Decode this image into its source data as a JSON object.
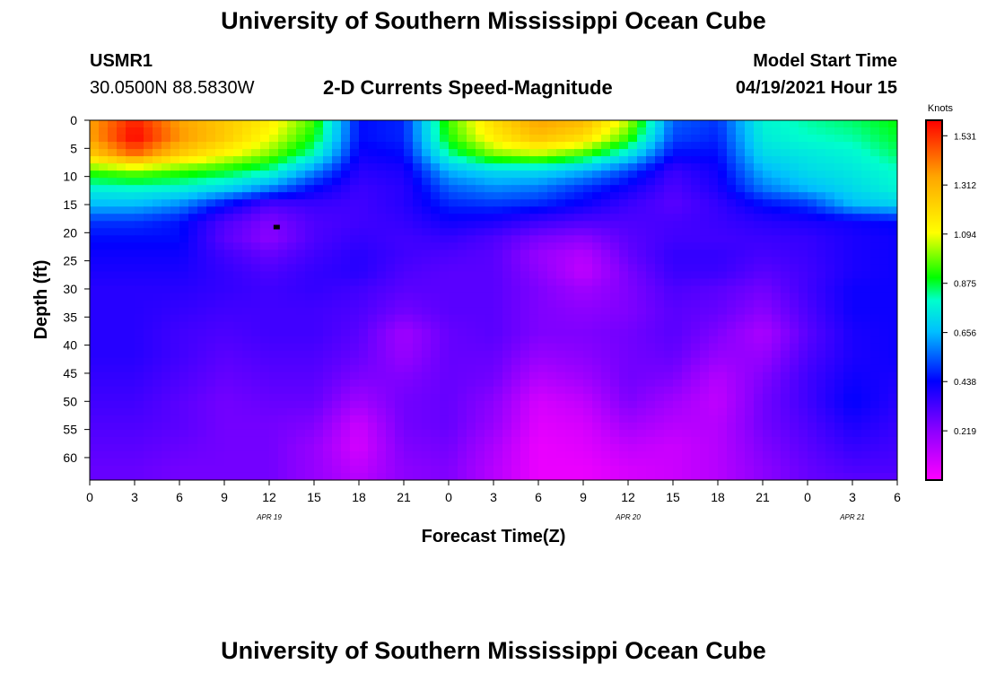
{
  "header": {
    "title": "University of Southern Mississippi Ocean Cube",
    "station_id": "USMR1",
    "station_coords": "30.0500N  88.5830W",
    "subtitle": "2-D Currents Speed-Magnitude",
    "model_start_label": "Model Start Time",
    "model_start_value": "04/19/2021 Hour 15"
  },
  "footer": {
    "title": "University of Southern Mississippi Ocean Cube"
  },
  "chart_data": {
    "type": "heatmap",
    "title": "2-D Currents Speed-Magnitude",
    "xlabel": "Forecast Time(Z)",
    "ylabel": "Depth (ft)",
    "x_unit": "hours since 04/19/2021 00Z",
    "x_range": [
      0,
      54
    ],
    "x_ticks": [
      {
        "x": 0,
        "label": "0"
      },
      {
        "x": 3,
        "label": "3"
      },
      {
        "x": 6,
        "label": "6"
      },
      {
        "x": 9,
        "label": "9"
      },
      {
        "x": 12,
        "label": "12"
      },
      {
        "x": 15,
        "label": "15"
      },
      {
        "x": 18,
        "label": "18"
      },
      {
        "x": 21,
        "label": "21"
      },
      {
        "x": 24,
        "label": "0"
      },
      {
        "x": 27,
        "label": "3"
      },
      {
        "x": 30,
        "label": "6"
      },
      {
        "x": 33,
        "label": "9"
      },
      {
        "x": 36,
        "label": "12"
      },
      {
        "x": 39,
        "label": "15"
      },
      {
        "x": 42,
        "label": "18"
      },
      {
        "x": 45,
        "label": "21"
      },
      {
        "x": 48,
        "label": "0"
      },
      {
        "x": 51,
        "label": "3"
      },
      {
        "x": 54,
        "label": "6"
      }
    ],
    "date_labels": [
      {
        "x": 12,
        "label": "APR 19"
      },
      {
        "x": 36,
        "label": "APR 20"
      },
      {
        "x": 51,
        "label": "APR 21"
      }
    ],
    "y_range": [
      0,
      64
    ],
    "y_ticks": [
      0,
      5,
      10,
      15,
      20,
      25,
      30,
      35,
      40,
      45,
      50,
      55,
      60
    ],
    "colorbar": {
      "unit": "Knots",
      "range": [
        0,
        1.6
      ],
      "ticks": [
        "0.219",
        "0.438",
        "0.656",
        "0.875",
        "1.094",
        "1.312",
        "1.531"
      ],
      "tick_values": [
        0.219,
        0.438,
        0.656,
        0.875,
        1.094,
        1.312,
        1.531
      ],
      "colors": [
        {
          "v": 0.0,
          "c": "#ff00ff"
        },
        {
          "v": 0.22,
          "c": "#8c00ff"
        },
        {
          "v": 0.44,
          "c": "#0000ff"
        },
        {
          "v": 0.66,
          "c": "#00bfff"
        },
        {
          "v": 0.8,
          "c": "#00ffcc"
        },
        {
          "v": 0.9,
          "c": "#00ff00"
        },
        {
          "v": 1.1,
          "c": "#ffff00"
        },
        {
          "v": 1.35,
          "c": "#ffa500"
        },
        {
          "v": 1.6,
          "c": "#ff0000"
        }
      ]
    },
    "x": [
      0,
      3,
      6,
      9,
      12,
      15,
      18,
      21,
      24,
      27,
      30,
      33,
      36,
      39,
      42,
      45,
      48,
      51,
      54
    ],
    "y": [
      0,
      3,
      6,
      9,
      12,
      15,
      18,
      21,
      24,
      27,
      30,
      34,
      38,
      42,
      46,
      50,
      54,
      58,
      62,
      64
    ],
    "z": [
      [
        1.35,
        1.55,
        1.35,
        1.25,
        1.15,
        0.95,
        0.45,
        0.48,
        0.95,
        1.2,
        1.35,
        1.3,
        1.05,
        0.55,
        0.5,
        0.78,
        0.82,
        0.85,
        0.9
      ],
      [
        1.35,
        1.6,
        1.38,
        1.25,
        1.1,
        0.9,
        0.45,
        0.48,
        0.92,
        1.15,
        1.28,
        1.2,
        0.95,
        0.52,
        0.48,
        0.76,
        0.8,
        0.82,
        0.88
      ],
      [
        1.25,
        1.45,
        1.25,
        1.12,
        1.0,
        0.8,
        0.42,
        0.45,
        0.82,
        1.0,
        1.05,
        0.95,
        0.75,
        0.45,
        0.45,
        0.72,
        0.75,
        0.78,
        0.85
      ],
      [
        0.95,
        1.0,
        0.95,
        0.9,
        0.82,
        0.6,
        0.38,
        0.4,
        0.65,
        0.72,
        0.72,
        0.65,
        0.52,
        0.35,
        0.42,
        0.65,
        0.72,
        0.75,
        0.8
      ],
      [
        0.78,
        0.8,
        0.78,
        0.72,
        0.6,
        0.45,
        0.35,
        0.38,
        0.55,
        0.6,
        0.58,
        0.5,
        0.42,
        0.32,
        0.4,
        0.58,
        0.66,
        0.72,
        0.78
      ],
      [
        0.66,
        0.66,
        0.6,
        0.45,
        0.32,
        0.35,
        0.34,
        0.38,
        0.48,
        0.5,
        0.48,
        0.42,
        0.35,
        0.3,
        0.36,
        0.45,
        0.5,
        0.66,
        0.7
      ],
      [
        0.5,
        0.5,
        0.46,
        0.32,
        0.24,
        0.32,
        0.34,
        0.36,
        0.42,
        0.4,
        0.35,
        0.32,
        0.32,
        0.33,
        0.35,
        0.38,
        0.4,
        0.42,
        0.45
      ],
      [
        0.45,
        0.45,
        0.45,
        0.3,
        0.22,
        0.32,
        0.36,
        0.34,
        0.36,
        0.32,
        0.25,
        0.22,
        0.3,
        0.34,
        0.34,
        0.35,
        0.36,
        0.4,
        0.42
      ],
      [
        0.42,
        0.42,
        0.42,
        0.34,
        0.28,
        0.34,
        0.38,
        0.34,
        0.32,
        0.3,
        0.2,
        0.14,
        0.28,
        0.36,
        0.36,
        0.33,
        0.35,
        0.4,
        0.42
      ],
      [
        0.4,
        0.4,
        0.4,
        0.36,
        0.32,
        0.36,
        0.38,
        0.32,
        0.3,
        0.3,
        0.22,
        0.12,
        0.25,
        0.35,
        0.35,
        0.3,
        0.34,
        0.4,
        0.42
      ],
      [
        0.38,
        0.38,
        0.38,
        0.36,
        0.34,
        0.36,
        0.34,
        0.3,
        0.3,
        0.3,
        0.24,
        0.18,
        0.24,
        0.32,
        0.3,
        0.26,
        0.34,
        0.42,
        0.42
      ],
      [
        0.38,
        0.38,
        0.36,
        0.34,
        0.34,
        0.34,
        0.32,
        0.26,
        0.3,
        0.3,
        0.24,
        0.22,
        0.24,
        0.3,
        0.28,
        0.22,
        0.32,
        0.42,
        0.42
      ],
      [
        0.38,
        0.38,
        0.34,
        0.32,
        0.34,
        0.34,
        0.3,
        0.18,
        0.28,
        0.3,
        0.24,
        0.24,
        0.26,
        0.3,
        0.24,
        0.16,
        0.3,
        0.4,
        0.42
      ],
      [
        0.38,
        0.38,
        0.34,
        0.3,
        0.32,
        0.32,
        0.28,
        0.2,
        0.28,
        0.28,
        0.2,
        0.22,
        0.26,
        0.28,
        0.2,
        0.2,
        0.32,
        0.4,
        0.42
      ],
      [
        0.36,
        0.36,
        0.32,
        0.28,
        0.3,
        0.3,
        0.24,
        0.24,
        0.28,
        0.26,
        0.14,
        0.18,
        0.26,
        0.24,
        0.14,
        0.24,
        0.34,
        0.42,
        0.4
      ],
      [
        0.34,
        0.34,
        0.3,
        0.26,
        0.28,
        0.28,
        0.18,
        0.26,
        0.28,
        0.22,
        0.08,
        0.12,
        0.24,
        0.18,
        0.12,
        0.26,
        0.34,
        0.44,
        0.38
      ],
      [
        0.32,
        0.32,
        0.3,
        0.26,
        0.26,
        0.24,
        0.1,
        0.26,
        0.28,
        0.2,
        0.06,
        0.08,
        0.18,
        0.14,
        0.14,
        0.26,
        0.32,
        0.4,
        0.36
      ],
      [
        0.3,
        0.3,
        0.28,
        0.26,
        0.26,
        0.2,
        0.08,
        0.24,
        0.26,
        0.16,
        0.04,
        0.06,
        0.12,
        0.1,
        0.14,
        0.24,
        0.3,
        0.36,
        0.34
      ],
      [
        0.28,
        0.28,
        0.26,
        0.26,
        0.26,
        0.2,
        0.12,
        0.22,
        0.24,
        0.14,
        0.04,
        0.04,
        0.08,
        0.1,
        0.14,
        0.22,
        0.28,
        0.32,
        0.32
      ],
      [
        0.28,
        0.28,
        0.26,
        0.26,
        0.26,
        0.2,
        0.14,
        0.22,
        0.24,
        0.14,
        0.04,
        0.04,
        0.08,
        0.1,
        0.14,
        0.22,
        0.28,
        0.3,
        0.3
      ]
    ],
    "annotations": [
      {
        "type": "marker",
        "x": 12.5,
        "y": 19
      }
    ],
    "grid": false,
    "legend": "right"
  }
}
